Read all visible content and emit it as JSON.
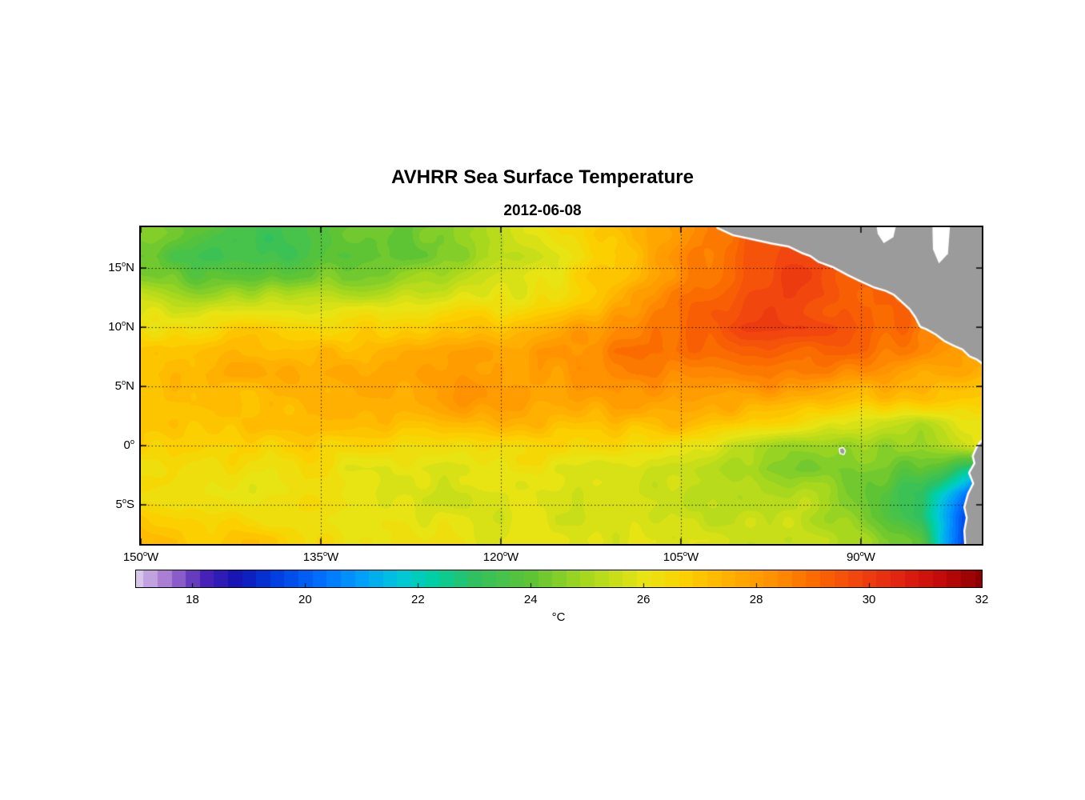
{
  "chart_data": {
    "type": "heatmap",
    "title": "AVHRR Sea Surface Temperature",
    "subtitle": "2012-06-08",
    "units": "°C",
    "colorbar": {
      "label": "°C",
      "min": 17,
      "max": 32,
      "quant_step": 0.25,
      "tick_values": [
        18,
        20,
        22,
        24,
        26,
        28,
        30,
        32
      ],
      "tick_labels": [
        "18",
        "20",
        "22",
        "24",
        "26",
        "28",
        "30",
        "32"
      ]
    },
    "axes": {
      "lon_range": [
        -150,
        -79.93
      ],
      "lat_range": [
        -8.31,
        18.45
      ],
      "x_tick_lons": [
        -150,
        -135,
        -120,
        -105,
        -90
      ],
      "x_tick_labels": [
        "150°W",
        "135°W",
        "120°W",
        "105°W",
        "90°W"
      ],
      "y_tick_lats": [
        15,
        10,
        5,
        0,
        -5
      ],
      "y_tick_labels": [
        "15°N",
        "10°N",
        "5°N",
        "0°",
        "5°S"
      ],
      "grid_lons": [
        -135,
        -120,
        -105,
        -90
      ],
      "grid_lats": [
        15,
        10,
        5,
        0,
        -5
      ],
      "grid_style": "dotted"
    },
    "colormap": [
      [
        0.0,
        "#d8c6ea"
      ],
      [
        0.04,
        "#9f6fce"
      ],
      [
        0.08,
        "#4a22b8"
      ],
      [
        0.12,
        "#1414b4"
      ],
      [
        0.167,
        "#0040e0"
      ],
      [
        0.22,
        "#0070ff"
      ],
      [
        0.267,
        "#00a0f8"
      ],
      [
        0.313,
        "#00c8d8"
      ],
      [
        0.353,
        "#00cfa0"
      ],
      [
        0.4,
        "#30c060"
      ],
      [
        0.467,
        "#5fc434"
      ],
      [
        0.533,
        "#a8d81e"
      ],
      [
        0.6,
        "#e8e414"
      ],
      [
        0.647,
        "#fcd200"
      ],
      [
        0.7,
        "#ffb000"
      ],
      [
        0.753,
        "#ff9000"
      ],
      [
        0.8,
        "#fb6c00"
      ],
      [
        0.853,
        "#f14410"
      ],
      [
        0.907,
        "#e02010"
      ],
      [
        0.953,
        "#c00a0a"
      ],
      [
        1.0,
        "#8c0000"
      ]
    ],
    "lons": [
      -150,
      -145,
      -140,
      -135,
      -130,
      -125,
      -120,
      -115,
      -110,
      -105,
      -100,
      -95,
      -90,
      -85,
      -80
    ],
    "lats": [
      18,
      16,
      14,
      12,
      10,
      8,
      6,
      4,
      2,
      0,
      -2,
      -4,
      -6,
      -8
    ],
    "sst_c": [
      [
        24.5,
        24.0,
        23.4,
        24.0,
        24.2,
        24.6,
        25.2,
        26.3,
        27.3,
        28.2,
        29.0,
        29.5,
        29.3,
        29.0,
        28.5
      ],
      [
        24.0,
        23.4,
        23.2,
        23.8,
        24.0,
        24.5,
        25.0,
        26.0,
        27.0,
        28.4,
        29.3,
        29.6,
        29.5,
        29.0,
        28.5
      ],
      [
        24.6,
        24.1,
        24.0,
        24.4,
        24.6,
        25.0,
        25.6,
        26.3,
        27.2,
        28.6,
        29.5,
        29.6,
        29.4,
        29.0,
        28.2
      ],
      [
        25.6,
        25.3,
        25.4,
        25.6,
        25.8,
        26.0,
        26.2,
        26.6,
        27.6,
        29.0,
        29.8,
        29.6,
        29.3,
        29.0,
        27.8
      ],
      [
        26.3,
        26.4,
        26.5,
        26.6,
        26.8,
        27.0,
        27.2,
        27.6,
        28.2,
        29.0,
        30.0,
        29.8,
        29.2,
        28.8,
        28.0
      ],
      [
        27.0,
        27.0,
        27.2,
        27.3,
        27.5,
        27.8,
        28.0,
        28.2,
        28.5,
        29.0,
        29.5,
        29.2,
        28.8,
        28.3,
        27.8
      ],
      [
        27.2,
        27.3,
        27.5,
        27.5,
        27.8,
        28.0,
        28.0,
        28.0,
        28.2,
        28.5,
        28.8,
        28.5,
        28.0,
        27.6,
        27.5
      ],
      [
        27.0,
        27.0,
        27.2,
        27.3,
        27.5,
        27.8,
        28.2,
        27.8,
        27.8,
        28.0,
        27.8,
        27.5,
        27.2,
        27.0,
        27.0
      ],
      [
        26.8,
        26.8,
        27.0,
        27.0,
        27.2,
        27.3,
        27.5,
        27.3,
        27.2,
        27.3,
        27.0,
        26.4,
        25.5,
        25.2,
        26.3
      ],
      [
        26.5,
        26.5,
        26.5,
        26.5,
        26.5,
        26.5,
        26.5,
        26.5,
        26.5,
        26.2,
        25.2,
        24.8,
        24.8,
        24.5,
        25.8
      ],
      [
        26.2,
        26.2,
        26.2,
        26.0,
        26.0,
        26.0,
        26.0,
        26.0,
        25.8,
        25.5,
        24.8,
        24.3,
        24.2,
        24.0,
        22.0
      ],
      [
        26.3,
        26.2,
        26.0,
        26.0,
        25.8,
        25.8,
        25.8,
        25.8,
        25.6,
        25.4,
        25.0,
        25.0,
        24.2,
        23.2,
        19.5
      ],
      [
        26.8,
        26.5,
        26.3,
        26.2,
        26.0,
        26.0,
        25.8,
        25.8,
        25.6,
        25.5,
        25.3,
        25.2,
        24.5,
        23.0,
        18.5
      ],
      [
        27.2,
        27.0,
        26.8,
        26.5,
        26.3,
        26.2,
        26.0,
        26.0,
        25.8,
        25.8,
        25.6,
        25.5,
        25.2,
        24.0,
        18.0
      ]
    ],
    "land_color": "#9b9b9b",
    "coast_outline_color": "#ffffff",
    "land": [
      {
        "name": "central-america",
        "pts": [
          [
            -102.0,
            18.9
          ],
          [
            -101.9,
            18.45
          ],
          [
            -100.6,
            17.85
          ],
          [
            -99.0,
            17.5
          ],
          [
            -97.4,
            17.15
          ],
          [
            -96.0,
            16.9
          ],
          [
            -94.9,
            16.35
          ],
          [
            -94.2,
            16.1
          ],
          [
            -93.5,
            15.6
          ],
          [
            -92.3,
            15.15
          ],
          [
            -91.0,
            14.45
          ],
          [
            -90.0,
            13.95
          ],
          [
            -88.9,
            13.45
          ],
          [
            -87.9,
            13.15
          ],
          [
            -87.2,
            12.8
          ],
          [
            -86.6,
            12.25
          ],
          [
            -85.9,
            11.6
          ],
          [
            -85.4,
            10.9
          ],
          [
            -85.0,
            10.1
          ],
          [
            -84.5,
            9.9
          ],
          [
            -83.7,
            9.45
          ],
          [
            -83.0,
            8.9
          ],
          [
            -82.2,
            8.5
          ],
          [
            -81.5,
            8.2
          ],
          [
            -80.9,
            7.6
          ],
          [
            -80.3,
            7.35
          ],
          [
            -79.6,
            6.8
          ],
          [
            -79.6,
            19.0
          ]
        ]
      },
      {
        "name": "south-america",
        "pts": [
          [
            -79.6,
            0.5
          ],
          [
            -79.95,
            0.3
          ],
          [
            -80.3,
            -0.2
          ],
          [
            -80.6,
            -0.9
          ],
          [
            -80.45,
            -1.5
          ],
          [
            -80.9,
            -2.3
          ],
          [
            -80.55,
            -3.2
          ],
          [
            -81.0,
            -4.1
          ],
          [
            -81.3,
            -5.2
          ],
          [
            -81.1,
            -6.1
          ],
          [
            -81.3,
            -7.2
          ],
          [
            -81.2,
            -8.8
          ],
          [
            -79.6,
            -8.8
          ]
        ]
      },
      {
        "name": "galapagos-island",
        "pts": [
          [
            -91.75,
            -0.28
          ],
          [
            -91.5,
            -0.22
          ],
          [
            -91.35,
            -0.45
          ],
          [
            -91.45,
            -0.7
          ],
          [
            -91.7,
            -0.62
          ]
        ]
      }
    ],
    "no_data": [
      {
        "name": "caribbean-west",
        "pts": [
          [
            -88.75,
            18.9
          ],
          [
            -87.0,
            18.9
          ],
          [
            -87.3,
            17.6
          ],
          [
            -88.1,
            17.1
          ],
          [
            -88.6,
            17.9
          ]
        ]
      },
      {
        "name": "caribbean-east",
        "pts": [
          [
            -84.05,
            18.9
          ],
          [
            -82.55,
            18.9
          ],
          [
            -82.75,
            16.2
          ],
          [
            -83.5,
            15.4
          ],
          [
            -84.0,
            16.6
          ]
        ]
      }
    ]
  }
}
